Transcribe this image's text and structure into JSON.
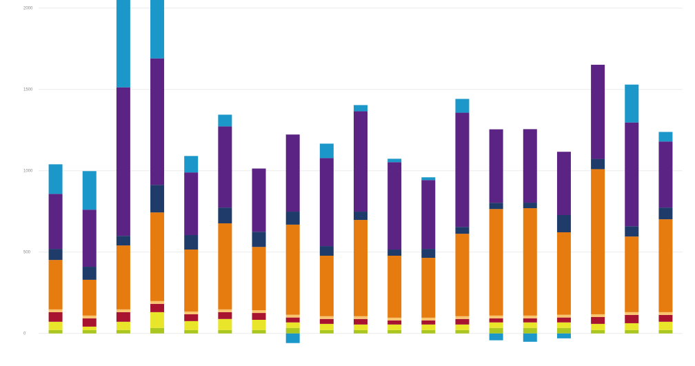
{
  "chart_data": {
    "type": "stacked-bar",
    "ylim": [
      -200,
      2050
    ],
    "yticks": [
      0,
      500,
      1000,
      1500,
      2000
    ],
    "grid": true,
    "series": [
      {
        "color": "#a9c621",
        "values": [
          21,
          21,
          21,
          34,
          21,
          21,
          21,
          34,
          21,
          21,
          21,
          21,
          21,
          34,
          34,
          34,
          21,
          21,
          21
        ]
      },
      {
        "color": "#e9e52b",
        "values": [
          51,
          21,
          51,
          97,
          55,
          68,
          63,
          34,
          38,
          34,
          34,
          34,
          34,
          34,
          34,
          34,
          38,
          42,
          51
        ]
      },
      {
        "color": "#a8132f",
        "values": [
          59,
          51,
          59,
          51,
          42,
          42,
          42,
          30,
          30,
          34,
          25,
          25,
          34,
          25,
          25,
          30,
          42,
          51,
          42
        ]
      },
      {
        "color": "#f8c56e",
        "values": [
          17,
          17,
          17,
          17,
          17,
          17,
          17,
          17,
          17,
          17,
          17,
          17,
          17,
          17,
          17,
          17,
          17,
          17,
          17
        ]
      },
      {
        "color": "#e67b10",
        "values": [
          304,
          220,
          393,
          545,
          381,
          529,
          389,
          554,
          372,
          592,
          381,
          368,
          507,
          655,
          660,
          507,
          892,
          465,
          571
        ]
      },
      {
        "color": "#1f3b6a",
        "values": [
          68,
          80,
          59,
          169,
          89,
          97,
          93,
          80,
          59,
          51,
          38,
          55,
          42,
          38,
          34,
          106,
          63,
          63,
          72
        ]
      },
      {
        "color": "#5b2384",
        "values": [
          338,
          351,
          913,
          778,
          385,
          499,
          389,
          474,
          541,
          617,
          537,
          423,
          702,
          452,
          452,
          389,
          579,
          638,
          406
        ]
      },
      {
        "color": "#1c97c9",
        "values": [
          182,
          237,
          592,
          423,
          101,
          72,
          0,
          -59,
          89,
          38,
          21,
          17,
          85,
          -42,
          -51,
          -30,
          0,
          233,
          59
        ]
      }
    ]
  }
}
